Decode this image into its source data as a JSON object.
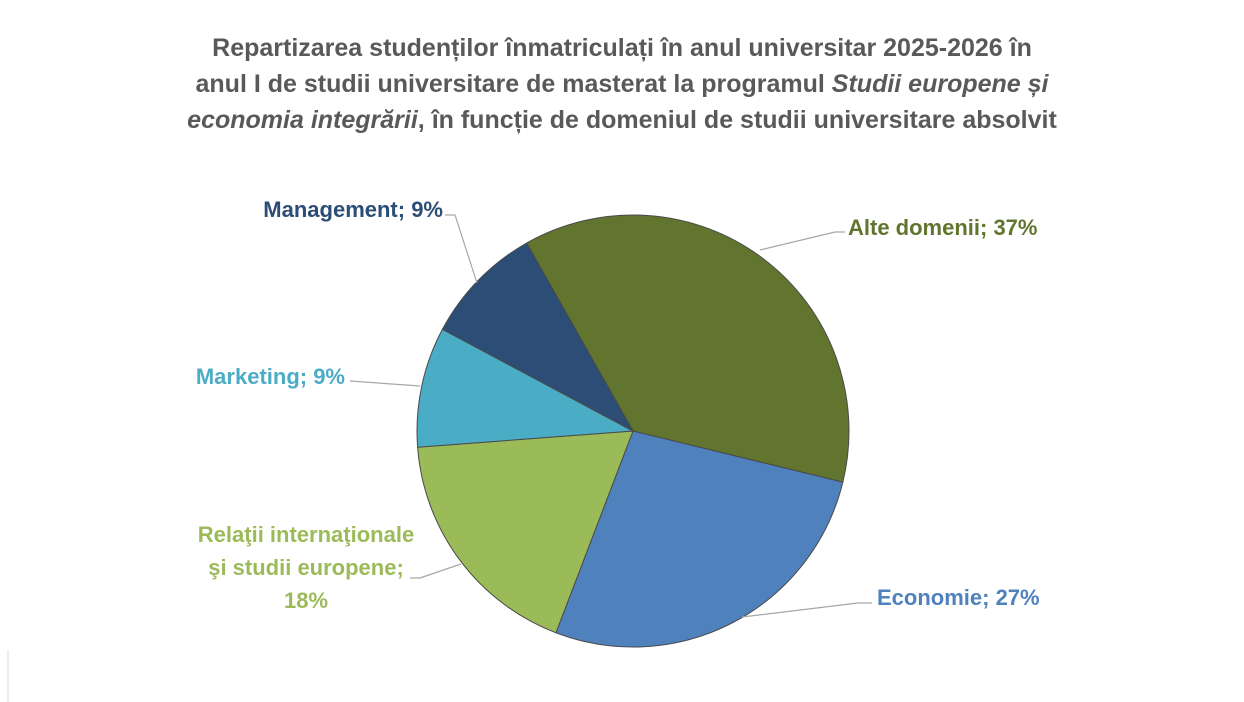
{
  "chart_data": {
    "type": "pie",
    "title_lines": [
      [
        {
          "text": "Repartizarea studenților înmatriculați în anul universitar 2025-2026 în",
          "italic": false
        }
      ],
      [
        {
          "text": "anul I de studii universitare de masterat la programul ",
          "italic": false
        },
        {
          "text": "Studii europene și",
          "italic": true
        }
      ],
      [
        {
          "text": "economia integrării",
          "italic": true
        },
        {
          "text": ", în funcție de domeniul de studii universitare absolvit",
          "italic": false
        }
      ]
    ],
    "values": [
      37,
      27,
      18,
      9,
      9
    ],
    "value_labels": [
      "Alte domenii; 37%",
      "Economie; 27%",
      "Relaţii internaţionale şi studii europene; 18%",
      "Marketing; 9%",
      "Management; 9%"
    ],
    "colors": [
      "#62752f",
      "#4f81bd",
      "#9bbb59",
      "#4bacc6",
      "#2c4d75"
    ]
  }
}
